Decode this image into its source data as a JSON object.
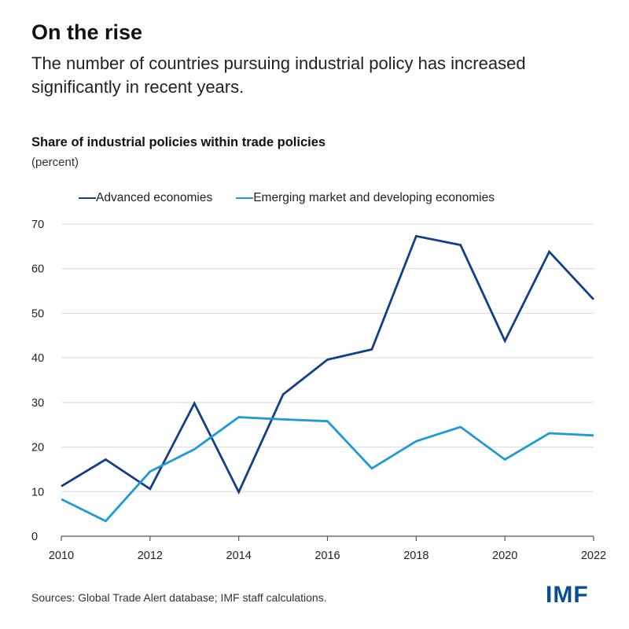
{
  "header": {
    "title": "On the rise",
    "subtitle": "The number of countries pursuing industrial policy has increased significantly in recent years."
  },
  "chart_data": {
    "type": "line",
    "title": "Share of industrial policies within trade policies",
    "unit_label": "(percent)",
    "xlabel": "",
    "ylabel": "",
    "x": [
      2010,
      2011,
      2012,
      2013,
      2014,
      2015,
      2016,
      2017,
      2018,
      2019,
      2020,
      2021,
      2022
    ],
    "x_ticks": [
      2010,
      2012,
      2014,
      2016,
      2018,
      2020,
      2022
    ],
    "y_ticks": [
      0,
      10,
      20,
      30,
      40,
      50,
      60,
      70
    ],
    "xlim": [
      2010,
      2022
    ],
    "ylim": [
      0,
      70
    ],
    "grid": true,
    "legend_position": "top",
    "series": [
      {
        "name": "Advanced economies",
        "color": "#123f8a",
        "values": [
          11.2,
          17.2,
          10.6,
          29.8,
          9.9,
          31.8,
          39.6,
          41.9,
          67.3,
          65.3,
          43.8,
          63.8,
          53.1
        ]
      },
      {
        "name": "Emerging market and developing economies",
        "color": "#1e9ad6",
        "values": [
          8.3,
          3.4,
          14.5,
          19.5,
          26.7,
          26.2,
          25.8,
          15.2,
          21.3,
          24.5,
          17.2,
          23.1,
          22.6
        ]
      }
    ]
  },
  "footer": {
    "source": "Sources: Global Trade Alert database; IMF staff calculations.",
    "logo": "IMF"
  }
}
